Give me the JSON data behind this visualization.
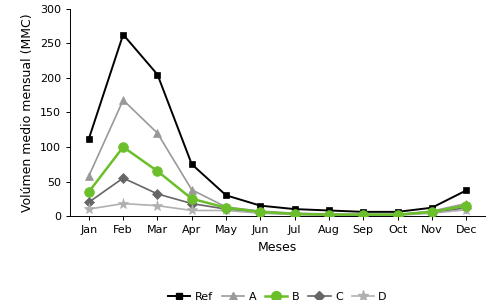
{
  "months": [
    "Jan",
    "Feb",
    "Mar",
    "Apr",
    "May",
    "Jun",
    "Jul",
    "Aug",
    "Sep",
    "Oct",
    "Nov",
    "Dec"
  ],
  "series_order": [
    "Ref",
    "A",
    "B",
    "C",
    "D"
  ],
  "series": {
    "Ref": [
      112,
      263,
      205,
      75,
      30,
      15,
      10,
      8,
      6,
      6,
      12,
      37
    ],
    "A": [
      58,
      168,
      120,
      38,
      13,
      7,
      4,
      3,
      2,
      2,
      7,
      18
    ],
    "B": [
      35,
      100,
      65,
      25,
      12,
      6,
      3,
      2,
      2,
      2,
      6,
      15
    ],
    "C": [
      20,
      55,
      32,
      18,
      10,
      5,
      3,
      2,
      2,
      2,
      5,
      12
    ],
    "D": [
      10,
      18,
      15,
      8,
      8,
      4,
      2,
      1,
      1,
      1,
      4,
      9
    ]
  },
  "colors": {
    "Ref": "#000000",
    "A": "#999999",
    "B": "#6abf2a",
    "C": "#666666",
    "D": "#b0b0b0"
  },
  "markers": {
    "Ref": "s",
    "A": "^",
    "B": "o",
    "C": "D",
    "D": "*"
  },
  "markersizes": {
    "Ref": 5,
    "A": 6,
    "B": 7,
    "C": 5,
    "D": 8
  },
  "linewidths": {
    "Ref": 1.4,
    "A": 1.2,
    "B": 1.8,
    "C": 1.2,
    "D": 1.2
  },
  "ylabel": "Volúmen medio mensual (MMC)",
  "xlabel": "Meses",
  "ylim": [
    0,
    300
  ],
  "yticks": [
    0,
    50,
    100,
    150,
    200,
    250,
    300
  ],
  "axis_fontsize": 9,
  "tick_fontsize": 8,
  "legend_fontsize": 8,
  "background_color": "#ffffff"
}
